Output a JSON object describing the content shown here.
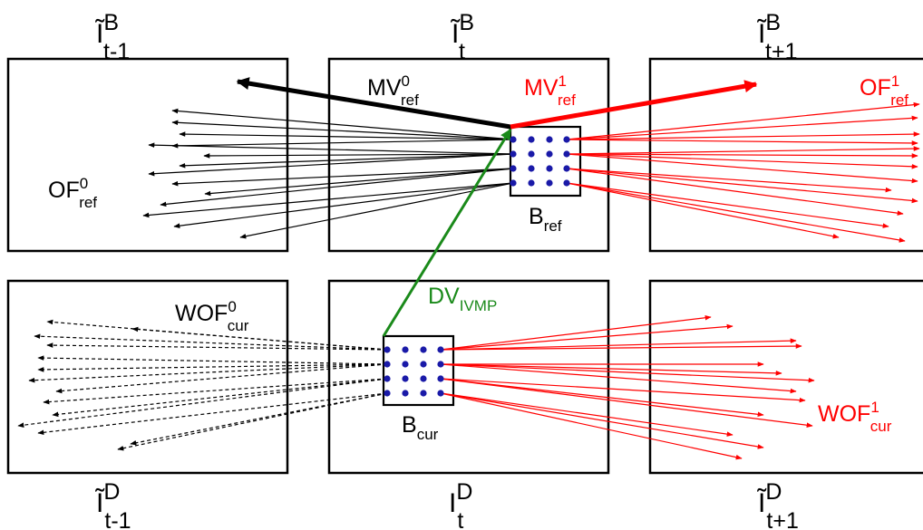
{
  "frames": {
    "top_left": {
      "base": "Ĩ",
      "sup": "B",
      "sub": "t-1"
    },
    "top_mid": {
      "base": "Ĩ",
      "sup": "B",
      "sub": "t"
    },
    "top_right": {
      "base": "Ĩ",
      "sup": "B",
      "sub": "t+1"
    },
    "bot_left": {
      "base": "Ĩ",
      "sup": "D",
      "sub": "t-1"
    },
    "bot_mid": {
      "base": "I",
      "sup": "D",
      "sub": "t"
    },
    "bot_right": {
      "base": "Ĩ",
      "sup": "D",
      "sub": "t+1"
    }
  },
  "vectors": {
    "mv0_ref": {
      "base": "MV",
      "sup": "0",
      "sub": "ref"
    },
    "mv1_ref": {
      "base": "MV",
      "sup": "1",
      "sub": "ref"
    },
    "of0_ref": {
      "base": "OF",
      "sup": "0",
      "sub": "ref"
    },
    "of1_ref": {
      "base": "OF",
      "sup": "1",
      "sub": "ref"
    },
    "wof0_cur": {
      "base": "WOF",
      "sup": "0",
      "sub": "cur"
    },
    "wof1_cur": {
      "base": "WOF",
      "sup": "1",
      "sub": "cur"
    },
    "dv_ivmp": {
      "base": "DV",
      "sub": "IVMP"
    }
  },
  "blocks": {
    "b_ref": {
      "base": "B",
      "sub": "ref"
    },
    "b_cur": {
      "base": "B",
      "sub": "cur"
    }
  },
  "colors": {
    "black": "#000000",
    "red": "#ff0000",
    "green": "#1a8a1a",
    "dot": "#1a1aa8"
  }
}
